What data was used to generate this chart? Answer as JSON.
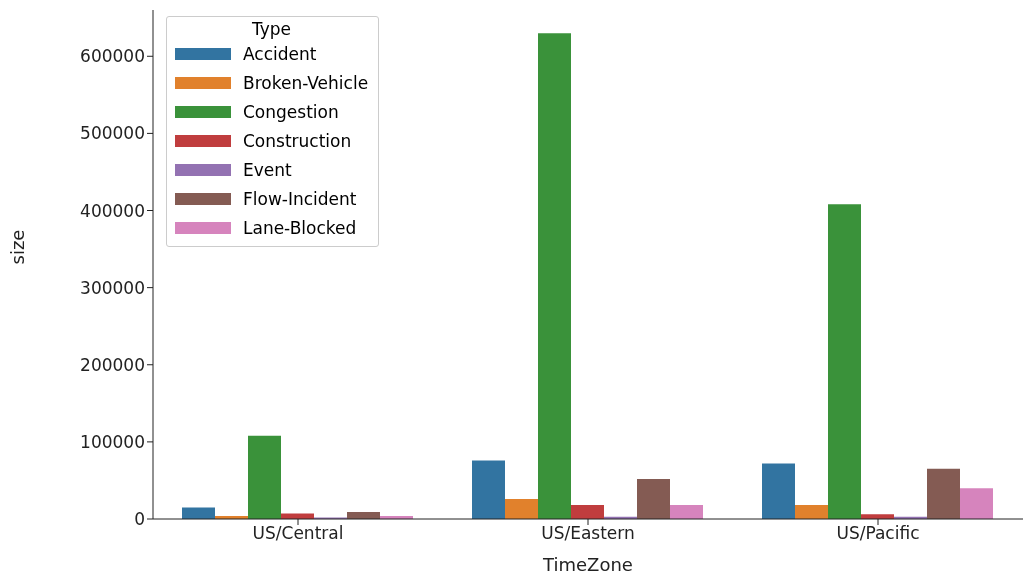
{
  "chart_data": {
    "type": "bar",
    "xlabel": "TimeZone",
    "ylabel": "size",
    "legend_title": "Type",
    "categories": [
      "US/Central",
      "US/Eastern",
      "US/Pacific"
    ],
    "series": [
      {
        "name": "Accident",
        "color": "#3274a1",
        "values": [
          15000,
          76000,
          72000
        ]
      },
      {
        "name": "Broken-Vehicle",
        "color": "#e1812c",
        "values": [
          4000,
          26000,
          18000
        ]
      },
      {
        "name": "Congestion",
        "color": "#3a923a",
        "values": [
          108000,
          630000,
          408000
        ]
      },
      {
        "name": "Construction",
        "color": "#c03d3e",
        "values": [
          7000,
          18000,
          6000
        ]
      },
      {
        "name": "Event",
        "color": "#9372b2",
        "values": [
          2000,
          3000,
          3000
        ]
      },
      {
        "name": "Flow-Incident",
        "color": "#845b53",
        "values": [
          9000,
          52000,
          65000
        ]
      },
      {
        "name": "Lane-Blocked",
        "color": "#d684bd",
        "values": [
          4000,
          18000,
          40000
        ]
      }
    ],
    "ylim": [
      0,
      660000
    ],
    "yticks": [
      0,
      100000,
      200000,
      300000,
      400000,
      500000,
      600000
    ],
    "grid": false,
    "legend": "top left"
  }
}
